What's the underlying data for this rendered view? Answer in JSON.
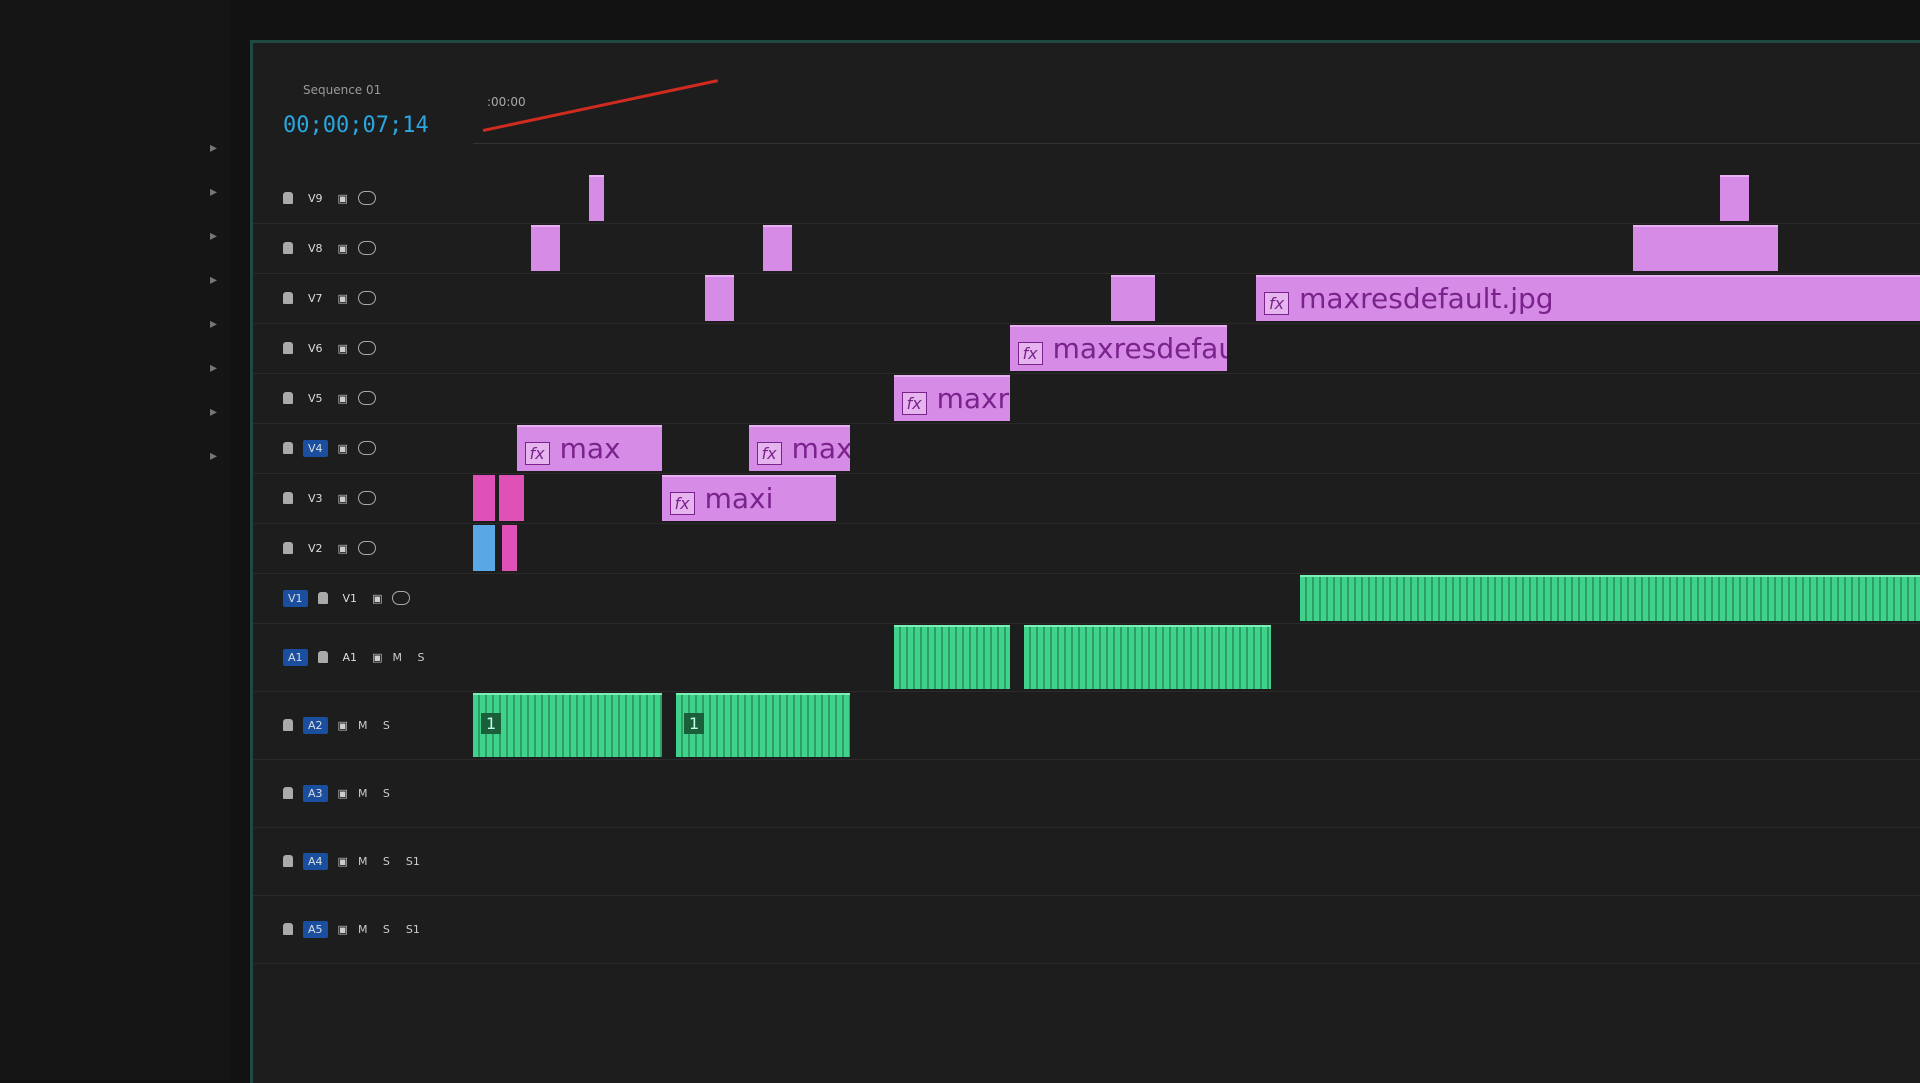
{
  "sequence": {
    "name": "Sequence 01",
    "timecode": "00;00;07;14"
  },
  "ruler": {
    "start_label": ":00:00"
  },
  "colors": {
    "video_clip": "#d68be6",
    "audio_clip": "#3fd28a",
    "track_target": "#1a4fa0",
    "playhead": "#d02b1e",
    "panel_border": "#1f4a44"
  },
  "tracks": [
    {
      "id": "V9",
      "type": "video"
    },
    {
      "id": "V8",
      "type": "video"
    },
    {
      "id": "V7",
      "type": "video"
    },
    {
      "id": "V6",
      "type": "video"
    },
    {
      "id": "V5",
      "type": "video"
    },
    {
      "id": "V4",
      "type": "video",
      "targeted": true
    },
    {
      "id": "V3",
      "type": "video"
    },
    {
      "id": "V2",
      "type": "video"
    },
    {
      "id": "V1",
      "type": "video",
      "source": "V1"
    },
    {
      "id": "A1",
      "type": "audio",
      "ms": "M S",
      "source": "A1"
    },
    {
      "id": "A2",
      "type": "audio",
      "ms": "M S",
      "targeted": true
    },
    {
      "id": "A3",
      "type": "audio",
      "ms": "M S",
      "targeted": true
    },
    {
      "id": "A4",
      "type": "audio",
      "ms": "M S",
      "extra": "S1",
      "targeted": true
    },
    {
      "id": "A5",
      "type": "audio",
      "ms": "M S",
      "extra": "S1",
      "targeted": true
    }
  ],
  "clips": [
    {
      "track": 5,
      "start": 3,
      "end": 13,
      "label": "max",
      "fx": "fx",
      "kind": "video"
    },
    {
      "track": 6,
      "start": 13,
      "end": 25,
      "label": "maxi",
      "fx": "fx",
      "kind": "video"
    },
    {
      "track": 5,
      "start": 19,
      "end": 26,
      "label": "maxre",
      "fx": "fx",
      "kind": "video"
    },
    {
      "track": 4,
      "start": 29,
      "end": 37,
      "label": "maxresde",
      "fx": "fx",
      "kind": "video"
    },
    {
      "track": 3,
      "start": 37,
      "end": 52,
      "label": "maxresdefault.jpg",
      "fx": "fx",
      "kind": "video"
    },
    {
      "track": 2,
      "start": 54,
      "end": 100,
      "label": "maxresdefault.jpg",
      "fx": "fx",
      "kind": "video"
    },
    {
      "track": 6,
      "start": 0,
      "end": 1.5,
      "label": "",
      "kind": "pink"
    },
    {
      "track": 6,
      "start": 1.8,
      "end": 3.5,
      "label": "",
      "kind": "pink"
    },
    {
      "track": 7,
      "start": 0,
      "end": 1.5,
      "label": "",
      "kind": "blue"
    },
    {
      "track": 7,
      "start": 2,
      "end": 3,
      "label": "",
      "kind": "pink"
    },
    {
      "track": 1,
      "start": 4,
      "end": 6,
      "label": "",
      "kind": "video"
    },
    {
      "track": 0,
      "start": 8,
      "end": 9,
      "label": "",
      "kind": "video"
    },
    {
      "track": 2,
      "start": 16,
      "end": 18,
      "label": "",
      "kind": "video"
    },
    {
      "track": 1,
      "start": 20,
      "end": 22,
      "label": "",
      "kind": "video"
    },
    {
      "track": 2,
      "start": 44,
      "end": 47,
      "label": "",
      "kind": "video"
    },
    {
      "track": 1,
      "start": 80,
      "end": 90,
      "label": "",
      "kind": "video"
    },
    {
      "track": 0,
      "start": 86,
      "end": 88,
      "label": "",
      "kind": "video"
    },
    {
      "track": 10,
      "start": 0,
      "end": 13,
      "label": "1",
      "kind": "audio"
    },
    {
      "track": 10,
      "start": 14,
      "end": 26,
      "label": "1",
      "kind": "audio"
    },
    {
      "track": 9,
      "start": 29,
      "end": 37,
      "label": "",
      "kind": "audio"
    },
    {
      "track": 9,
      "start": 38,
      "end": 55,
      "label": "",
      "kind": "audio"
    },
    {
      "track": 8,
      "start": 57,
      "end": 100,
      "label": "",
      "kind": "audio"
    }
  ]
}
